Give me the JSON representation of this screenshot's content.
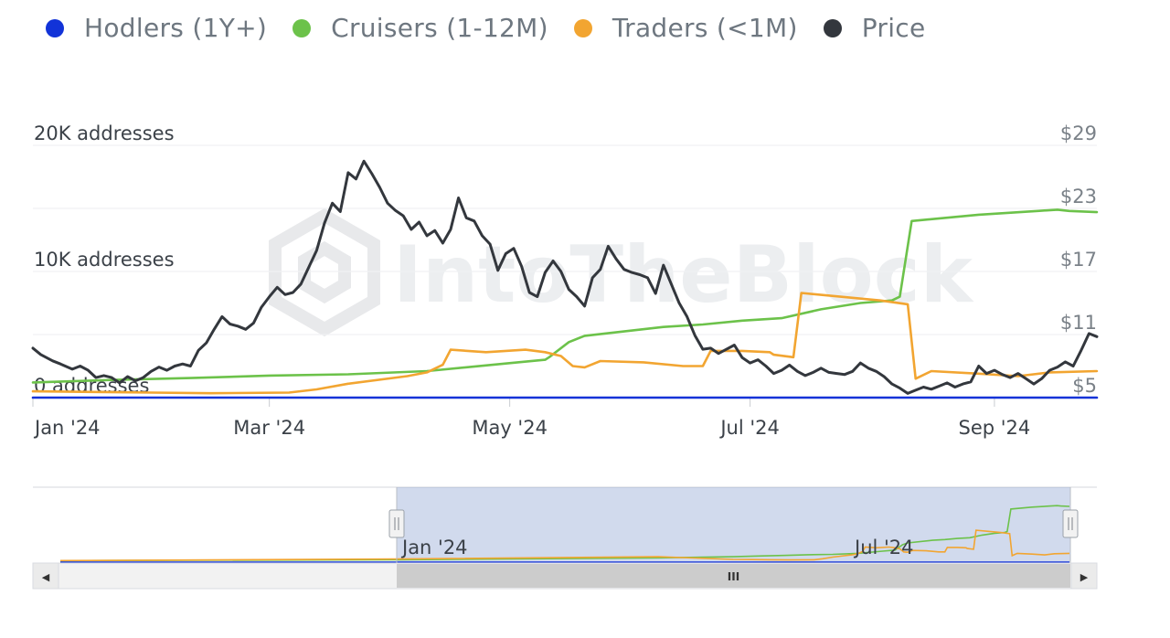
{
  "legend": {
    "items": [
      {
        "label": "Hodlers (1Y+)",
        "color": "#1233d8"
      },
      {
        "label": "Cruisers (1-12M)",
        "color": "#6cc24a"
      },
      {
        "label": "Traders (<1M)",
        "color": "#f2a531"
      },
      {
        "label": "Price",
        "color": "#33373d"
      }
    ]
  },
  "watermark": "IntoTheBlock",
  "navigator": {
    "labels": [
      "Jan '24",
      "Jul '24"
    ],
    "scroll_left_arrow": "◀",
    "scroll_right_arrow": "▶",
    "scroll_grip": "III"
  },
  "chart_data": {
    "type": "line",
    "x_ticks": [
      "Jan '24",
      "Mar '24",
      "May '24",
      "Jul '24",
      "Sep '24"
    ],
    "x_tick_days": [
      0,
      60,
      121,
      182,
      244
    ],
    "x_range_days": [
      0,
      270
    ],
    "y_left": {
      "ticks": [
        "0 addresses",
        "10K addresses",
        "20K addresses"
      ],
      "tick_values": [
        0,
        10000,
        20000
      ],
      "range": [
        0,
        20000
      ]
    },
    "y_right": {
      "ticks": [
        "$5",
        "$11",
        "$17",
        "$23",
        "$29"
      ],
      "tick_values": [
        5,
        11,
        17,
        23,
        29
      ],
      "range": [
        5,
        29
      ]
    },
    "grid": true,
    "legend_position": "top",
    "series": [
      {
        "name": "Hodlers (1Y+)",
        "axis": "left",
        "color": "#1233d8",
        "points": [
          [
            0,
            0
          ],
          [
            270,
            0
          ]
        ]
      },
      {
        "name": "Cruisers (1-12M)",
        "axis": "left",
        "color": "#6cc24a",
        "points": [
          [
            0,
            1200
          ],
          [
            20,
            1400
          ],
          [
            40,
            1550
          ],
          [
            60,
            1750
          ],
          [
            80,
            1850
          ],
          [
            100,
            2100
          ],
          [
            120,
            2700
          ],
          [
            130,
            3000
          ],
          [
            131,
            3200
          ],
          [
            136,
            4400
          ],
          [
            140,
            4900
          ],
          [
            160,
            5600
          ],
          [
            170,
            5800
          ],
          [
            180,
            6100
          ],
          [
            190,
            6300
          ],
          [
            200,
            7000
          ],
          [
            210,
            7500
          ],
          [
            218,
            7700
          ],
          [
            220,
            8000
          ],
          [
            223,
            14000
          ],
          [
            240,
            14500
          ],
          [
            255,
            14800
          ],
          [
            260,
            14900
          ],
          [
            263,
            14800
          ],
          [
            270,
            14700
          ]
        ]
      },
      {
        "name": "Traders (<1M)",
        "axis": "left",
        "color": "#f2a531",
        "points": [
          [
            0,
            500
          ],
          [
            15,
            450
          ],
          [
            30,
            400
          ],
          [
            45,
            350
          ],
          [
            65,
            400
          ],
          [
            72,
            650
          ],
          [
            80,
            1100
          ],
          [
            95,
            1700
          ],
          [
            100,
            2000
          ],
          [
            104,
            2600
          ],
          [
            106,
            3800
          ],
          [
            115,
            3600
          ],
          [
            125,
            3800
          ],
          [
            130,
            3600
          ],
          [
            134,
            3300
          ],
          [
            137,
            2500
          ],
          [
            140,
            2400
          ],
          [
            144,
            2900
          ],
          [
            155,
            2800
          ],
          [
            165,
            2500
          ],
          [
            170,
            2500
          ],
          [
            172,
            3700
          ],
          [
            180,
            3700
          ],
          [
            187,
            3600
          ],
          [
            188,
            3400
          ],
          [
            193,
            3200
          ],
          [
            195,
            8300
          ],
          [
            215,
            7700
          ],
          [
            222,
            7400
          ],
          [
            224,
            1500
          ],
          [
            228,
            2100
          ],
          [
            240,
            1900
          ],
          [
            250,
            1700
          ],
          [
            258,
            2000
          ],
          [
            270,
            2100
          ]
        ]
      },
      {
        "name": "Price",
        "axis": "right",
        "color": "#33373d",
        "points": [
          [
            0,
            9.7
          ],
          [
            2,
            9.1
          ],
          [
            5,
            8.5
          ],
          [
            7,
            8.2
          ],
          [
            10,
            7.7
          ],
          [
            12,
            8.0
          ],
          [
            14,
            7.6
          ],
          [
            16,
            6.9
          ],
          [
            18,
            7.1
          ],
          [
            20,
            6.9
          ],
          [
            22,
            6.4
          ],
          [
            24,
            7.0
          ],
          [
            26,
            6.6
          ],
          [
            28,
            6.9
          ],
          [
            30,
            7.5
          ],
          [
            32,
            7.9
          ],
          [
            34,
            7.6
          ],
          [
            36,
            8.0
          ],
          [
            38,
            8.2
          ],
          [
            40,
            8.0
          ],
          [
            42,
            9.5
          ],
          [
            44,
            10.2
          ],
          [
            46,
            11.5
          ],
          [
            48,
            12.7
          ],
          [
            50,
            12.0
          ],
          [
            52,
            11.8
          ],
          [
            54,
            11.5
          ],
          [
            56,
            12.1
          ],
          [
            58,
            13.6
          ],
          [
            60,
            14.6
          ],
          [
            62,
            15.5
          ],
          [
            64,
            14.8
          ],
          [
            66,
            15.0
          ],
          [
            68,
            15.8
          ],
          [
            70,
            17.4
          ],
          [
            72,
            19.0
          ],
          [
            74,
            21.6
          ],
          [
            76,
            23.5
          ],
          [
            78,
            22.7
          ],
          [
            80,
            26.4
          ],
          [
            82,
            25.8
          ],
          [
            84,
            27.5
          ],
          [
            86,
            26.3
          ],
          [
            88,
            25.0
          ],
          [
            90,
            23.5
          ],
          [
            92,
            22.8
          ],
          [
            94,
            22.3
          ],
          [
            96,
            21.0
          ],
          [
            98,
            21.7
          ],
          [
            100,
            20.4
          ],
          [
            102,
            20.9
          ],
          [
            104,
            19.7
          ],
          [
            106,
            21.0
          ],
          [
            108,
            24.0
          ],
          [
            110,
            22.1
          ],
          [
            112,
            21.8
          ],
          [
            114,
            20.4
          ],
          [
            116,
            19.6
          ],
          [
            118,
            17.1
          ],
          [
            120,
            18.7
          ],
          [
            122,
            19.2
          ],
          [
            124,
            17.5
          ],
          [
            126,
            15.0
          ],
          [
            128,
            14.6
          ],
          [
            130,
            16.9
          ],
          [
            132,
            18.0
          ],
          [
            134,
            17.0
          ],
          [
            136,
            15.3
          ],
          [
            138,
            14.6
          ],
          [
            140,
            13.7
          ],
          [
            142,
            16.4
          ],
          [
            144,
            17.2
          ],
          [
            146,
            19.4
          ],
          [
            148,
            18.2
          ],
          [
            150,
            17.2
          ],
          [
            152,
            16.9
          ],
          [
            154,
            16.7
          ],
          [
            156,
            16.4
          ],
          [
            158,
            14.9
          ],
          [
            160,
            17.6
          ],
          [
            162,
            15.8
          ],
          [
            164,
            14.0
          ],
          [
            166,
            12.7
          ],
          [
            168,
            10.9
          ],
          [
            170,
            9.6
          ],
          [
            172,
            9.7
          ],
          [
            174,
            9.2
          ],
          [
            176,
            9.6
          ],
          [
            178,
            10.0
          ],
          [
            180,
            8.8
          ],
          [
            182,
            8.3
          ],
          [
            184,
            8.6
          ],
          [
            186,
            8.0
          ],
          [
            188,
            7.3
          ],
          [
            190,
            7.6
          ],
          [
            192,
            8.1
          ],
          [
            194,
            7.5
          ],
          [
            196,
            7.1
          ],
          [
            198,
            7.4
          ],
          [
            200,
            7.8
          ],
          [
            202,
            7.4
          ],
          [
            204,
            7.3
          ],
          [
            206,
            7.2
          ],
          [
            208,
            7.5
          ],
          [
            210,
            8.3
          ],
          [
            212,
            7.8
          ],
          [
            214,
            7.5
          ],
          [
            216,
            7.0
          ],
          [
            218,
            6.3
          ],
          [
            220,
            5.9
          ],
          [
            222,
            5.4
          ],
          [
            224,
            5.7
          ],
          [
            226,
            6.0
          ],
          [
            228,
            5.8
          ],
          [
            230,
            6.1
          ],
          [
            232,
            6.4
          ],
          [
            234,
            6.0
          ],
          [
            236,
            6.3
          ],
          [
            238,
            6.5
          ],
          [
            240,
            8.0
          ],
          [
            242,
            7.3
          ],
          [
            244,
            7.6
          ],
          [
            246,
            7.2
          ],
          [
            248,
            6.9
          ],
          [
            250,
            7.3
          ],
          [
            252,
            6.8
          ],
          [
            254,
            6.3
          ],
          [
            256,
            6.8
          ],
          [
            258,
            7.6
          ],
          [
            260,
            7.9
          ],
          [
            262,
            8.4
          ],
          [
            264,
            8.0
          ],
          [
            266,
            9.5
          ],
          [
            268,
            11.1
          ],
          [
            270,
            10.8
          ]
        ]
      }
    ]
  }
}
